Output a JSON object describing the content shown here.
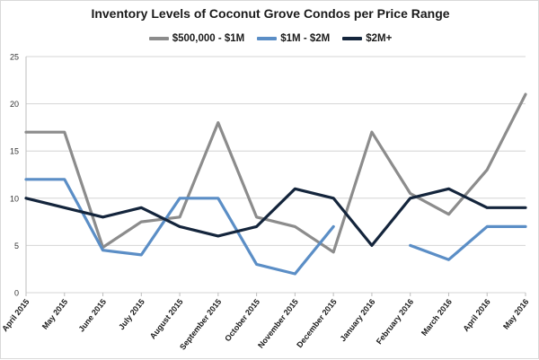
{
  "chart_data": {
    "type": "line",
    "title": "Inventory Levels of Coconut Grove Condos per Price Range",
    "xlabel": "",
    "ylabel": "",
    "ylim": [
      0,
      25
    ],
    "yticks": [
      0,
      5,
      10,
      15,
      20,
      25
    ],
    "grid": "horizontal",
    "legend_position": "top",
    "categories": [
      "April 2015",
      "May 2015",
      "June 2015",
      "July 2015",
      "August 2015",
      "September 2015",
      "October 2015",
      "November 2015",
      "December 2015",
      "January 2016",
      "February 2016",
      "March 2016",
      "April 2016",
      "May 2016"
    ],
    "series": [
      {
        "name": "$500,000 - $1M",
        "color": "#8c8c8c",
        "values": [
          17,
          17,
          4.8,
          7.5,
          8,
          18,
          8,
          7,
          4.3,
          17,
          10.5,
          8.3,
          13,
          21
        ]
      },
      {
        "name": "$1M - $2M",
        "color": "#5b8ec6",
        "values": [
          12,
          12,
          4.5,
          4,
          10,
          10,
          3,
          2,
          7,
          null,
          5,
          3.5,
          7,
          7
        ]
      },
      {
        "name": "$2M+",
        "color": "#14253c",
        "values": [
          10,
          9,
          8,
          9,
          7,
          6,
          7,
          11,
          10,
          5,
          10,
          11,
          9,
          9
        ]
      }
    ]
  }
}
